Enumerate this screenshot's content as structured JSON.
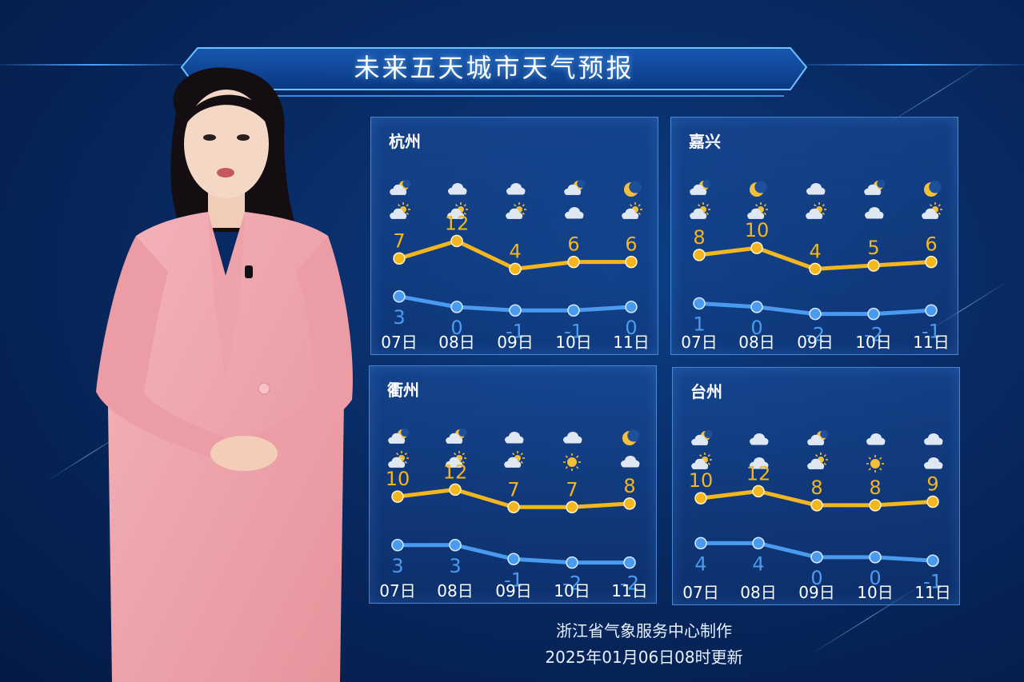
{
  "title": "未来五天城市天气预报",
  "footer": {
    "producer": "浙江省气象服务中心制作",
    "updated": "2025年01月06日08时更新"
  },
  "colors": {
    "high": "#f3b61f",
    "low": "#4a9bef",
    "text": "#ffffff"
  },
  "cities": [
    {
      "name": "杭州",
      "days": [
        "07日",
        "08日",
        "09日",
        "10日",
        "11日"
      ],
      "day_icons": [
        "partly-cloudy-night-icon",
        "cloudy-icon",
        "cloudy-icon",
        "partly-cloudy-night-icon",
        "moon-icon"
      ],
      "night_icons": [
        "partly-cloudy-icon",
        "partly-cloudy-icon",
        "partly-cloudy-icon",
        "cloudy-icon",
        "partly-cloudy-icon"
      ],
      "high": [
        7,
        12,
        4,
        6,
        6
      ],
      "low": [
        3,
        0,
        -1,
        -1,
        0
      ]
    },
    {
      "name": "嘉兴",
      "days": [
        "07日",
        "08日",
        "09日",
        "10日",
        "11日"
      ],
      "day_icons": [
        "partly-cloudy-night-icon",
        "moon-icon",
        "cloudy-icon",
        "partly-cloudy-night-icon",
        "moon-icon"
      ],
      "night_icons": [
        "partly-cloudy-icon",
        "partly-cloudy-icon",
        "partly-cloudy-icon",
        "cloudy-icon",
        "partly-cloudy-icon"
      ],
      "high": [
        8,
        10,
        4,
        5,
        6
      ],
      "low": [
        1,
        0,
        -2,
        -2,
        -1
      ]
    },
    {
      "name": "衢州",
      "days": [
        "07日",
        "08日",
        "09日",
        "10日",
        "11日"
      ],
      "day_icons": [
        "partly-cloudy-night-icon",
        "partly-cloudy-night-icon",
        "cloudy-icon",
        "cloudy-icon",
        "moon-icon"
      ],
      "night_icons": [
        "partly-cloudy-icon",
        "partly-cloudy-icon",
        "partly-cloudy-icon",
        "sun-icon",
        "cloudy-icon"
      ],
      "high": [
        10,
        12,
        7,
        7,
        8
      ],
      "low": [
        3,
        3,
        -1,
        -2,
        -2
      ]
    },
    {
      "name": "台州",
      "days": [
        "07日",
        "08日",
        "09日",
        "10日",
        "11日"
      ],
      "day_icons": [
        "partly-cloudy-night-icon",
        "cloudy-icon",
        "partly-cloudy-night-icon",
        "cloudy-icon",
        "cloudy-icon"
      ],
      "night_icons": [
        "partly-cloudy-icon",
        "cloudy-icon",
        "partly-cloudy-icon",
        "sun-icon",
        "cloudy-icon"
      ],
      "high": [
        10,
        12,
        8,
        8,
        9
      ],
      "low": [
        4,
        4,
        0,
        0,
        -1
      ]
    }
  ]
}
